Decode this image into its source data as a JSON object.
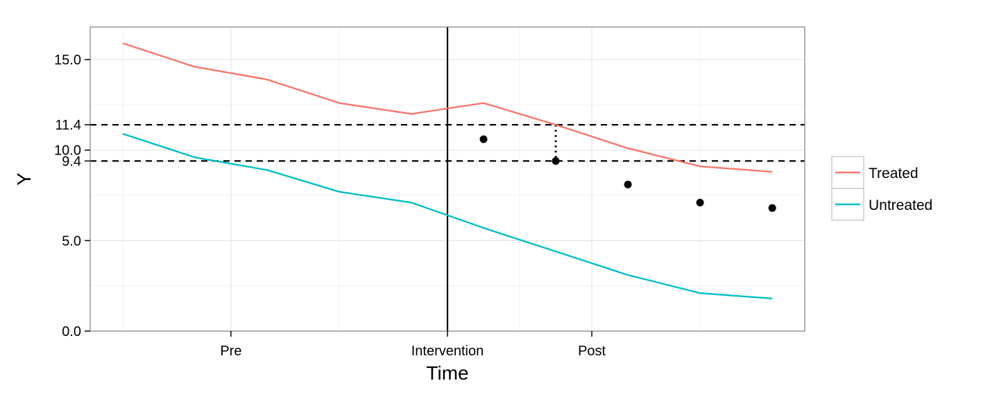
{
  "chart_data": {
    "type": "line",
    "title": "",
    "xlabel": "Time",
    "ylabel": "Y",
    "x": [
      1,
      2,
      3,
      4,
      5,
      6,
      7,
      8,
      9,
      10
    ],
    "xlim": [
      0.55,
      10.45
    ],
    "ylim": [
      0,
      16.8
    ],
    "x_ticks": [
      {
        "value": 2.5,
        "label": "Pre"
      },
      {
        "value": 5.5,
        "label": "Intervention"
      },
      {
        "value": 7.5,
        "label": "Post"
      }
    ],
    "y_ticks": [
      {
        "value": 0,
        "label": "0.0"
      },
      {
        "value": 5,
        "label": "5.0"
      },
      {
        "value": 9.4,
        "label": "9.4"
      },
      {
        "value": 10,
        "label": "10.0"
      },
      {
        "value": 11.4,
        "label": "11.4"
      },
      {
        "value": 15,
        "label": "15.0"
      }
    ],
    "series": [
      {
        "name": "Treated",
        "color": "#F8766D",
        "values": [
          15.9,
          14.6,
          13.9,
          12.6,
          12.0,
          12.6,
          11.4,
          10.1,
          9.1,
          8.8
        ]
      },
      {
        "name": "Untreated",
        "color": "#00BFC4",
        "values": [
          10.9,
          9.6,
          8.9,
          7.7,
          7.1,
          5.7,
          4.4,
          3.1,
          2.1,
          1.8
        ]
      }
    ],
    "counterfactual_points": {
      "color": "#000000",
      "x": [
        6,
        7,
        8,
        9,
        10
      ],
      "values": [
        10.6,
        9.4,
        8.1,
        7.1,
        6.8
      ]
    },
    "intervention_x": 5.5,
    "reference_lines_y": [
      11.4,
      9.4
    ],
    "effect_segment": {
      "x": 7,
      "from": 11.4,
      "to": 9.4
    },
    "grid": true,
    "legend_position": "right"
  }
}
